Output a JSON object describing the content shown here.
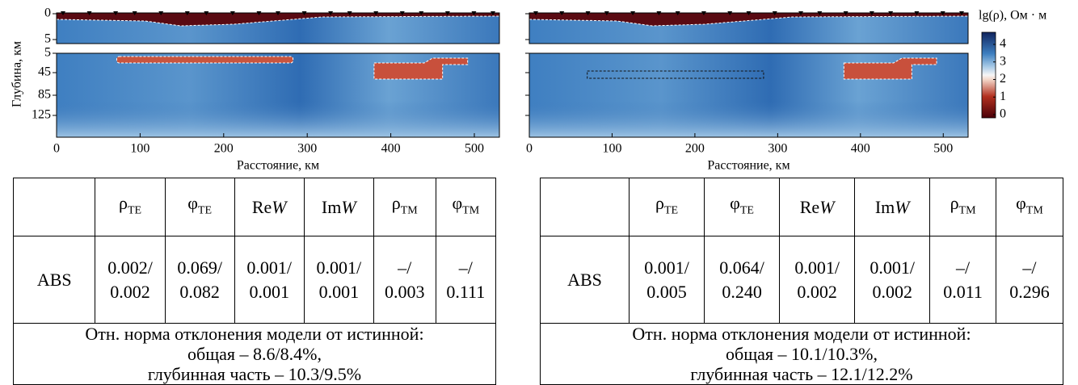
{
  "figure": {
    "y_label": "Глубина, км",
    "x_label": "Расстояние, км",
    "xlim": [
      0,
      530
    ],
    "x_ticks": [
      0,
      100,
      200,
      300,
      400,
      500
    ],
    "y_ticks_top": [
      0,
      5
    ],
    "y_ticks_bottom": [
      5,
      45,
      85,
      125
    ],
    "colorbar": {
      "label": "lg(ρ), Ом · м",
      "lim": [
        0,
        4
      ],
      "ticks": [
        4,
        3,
        2,
        1,
        0
      ]
    }
  },
  "tables": [
    {
      "header": [
        {
          "sym": "ρ",
          "sub": "TE"
        },
        {
          "sym": "φ",
          "sub": "TE"
        },
        {
          "sym": "Re",
          "it": "W"
        },
        {
          "sym": "Im",
          "it": "W"
        },
        {
          "sym": "ρ",
          "sub": "TM"
        },
        {
          "sym": "φ",
          "sub": "TM"
        }
      ],
      "row_label": "ABS",
      "cells": [
        [
          "0.002/",
          "0.002"
        ],
        [
          "0.069/",
          "0.082"
        ],
        [
          "0.001/",
          "0.001"
        ],
        [
          "0.001/",
          "0.001"
        ],
        [
          "–/",
          "0.003"
        ],
        [
          "–/",
          "0.111"
        ]
      ],
      "note": [
        "Отн. норма отклонения модели от истинной:",
        "общая – 8.6/8.4%,",
        "глубинная часть – 10.3/9.5%"
      ]
    },
    {
      "header": [
        {
          "sym": "ρ",
          "sub": "TE"
        },
        {
          "sym": "φ",
          "sub": "TE"
        },
        {
          "sym": "Re",
          "it": "W"
        },
        {
          "sym": "Im",
          "it": "W"
        },
        {
          "sym": "ρ",
          "sub": "TM"
        },
        {
          "sym": "φ",
          "sub": "TM"
        }
      ],
      "row_label": "ABS",
      "cells": [
        [
          "0.001/",
          "0.005"
        ],
        [
          "0.064/",
          "0.240"
        ],
        [
          "0.001/",
          "0.002"
        ],
        [
          "0.001/",
          "0.002"
        ],
        [
          "–/",
          "0.011"
        ],
        [
          "–/",
          "0.296"
        ]
      ],
      "note": [
        "Отн. норма отклонения модели от истинной:",
        "общая – 10.1/10.3%,",
        "глубинная часть – 12.1/12.2%"
      ]
    }
  ]
}
